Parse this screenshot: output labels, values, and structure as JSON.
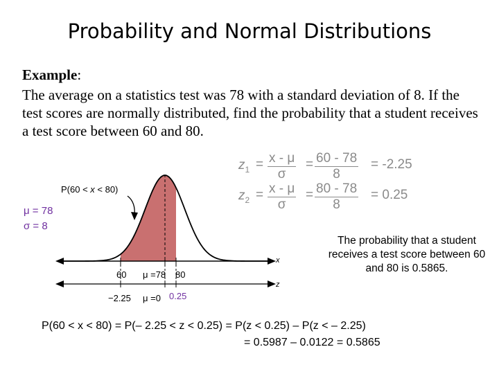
{
  "slide": {
    "title": "Probability and Normal Distributions",
    "example_label": "Example",
    "example_colon": ":",
    "problem": "The average on a statistics test was 78 with a standard deviation of 8.  If the test scores are normally distributed, find the probability that a student receives a test score between 60 and 80."
  },
  "equations": {
    "z1": {
      "var": "z",
      "sub": "1",
      "frac_num": "x -  μ",
      "frac_den": "σ",
      "eq_num": "60 - 78",
      "eq_den": "8",
      "result": "= -2.25"
    },
    "z2": {
      "var": "z",
      "sub": "2",
      "frac_num": "x -  μ",
      "frac_den": "σ",
      "eq_num": "80 - 78",
      "eq_den": "8",
      "result": "= 0.25"
    }
  },
  "graph": {
    "prob_label_pre": "P(60 < ",
    "prob_label_var": "x",
    "prob_label_post": " < 80)",
    "mu": "μ = 78",
    "sigma": "σ = 8",
    "x_axis_var": "x",
    "z_axis_var": "z",
    "x_ticks": {
      "left": "60",
      "mid": "μ =78",
      "right": "80"
    },
    "z_ticks": {
      "left": "−2.25",
      "mid": "μ =0",
      "right": "0.25"
    },
    "colors": {
      "shade": "#c0504d",
      "fill": "#c97070",
      "mu_sigma": "#7030a0",
      "equation": "#8a8a8a"
    }
  },
  "answer": "The probability that a student receives a test score between 60 and 80 is 0.5865.",
  "final": {
    "line1": "P(60 < x < 80) = P(– 2.25 < z < 0.25) = P(z < 0.25) – P(z < – 2.25)",
    "line2": "=  0.5987 – 0.0122 = 0.5865"
  }
}
